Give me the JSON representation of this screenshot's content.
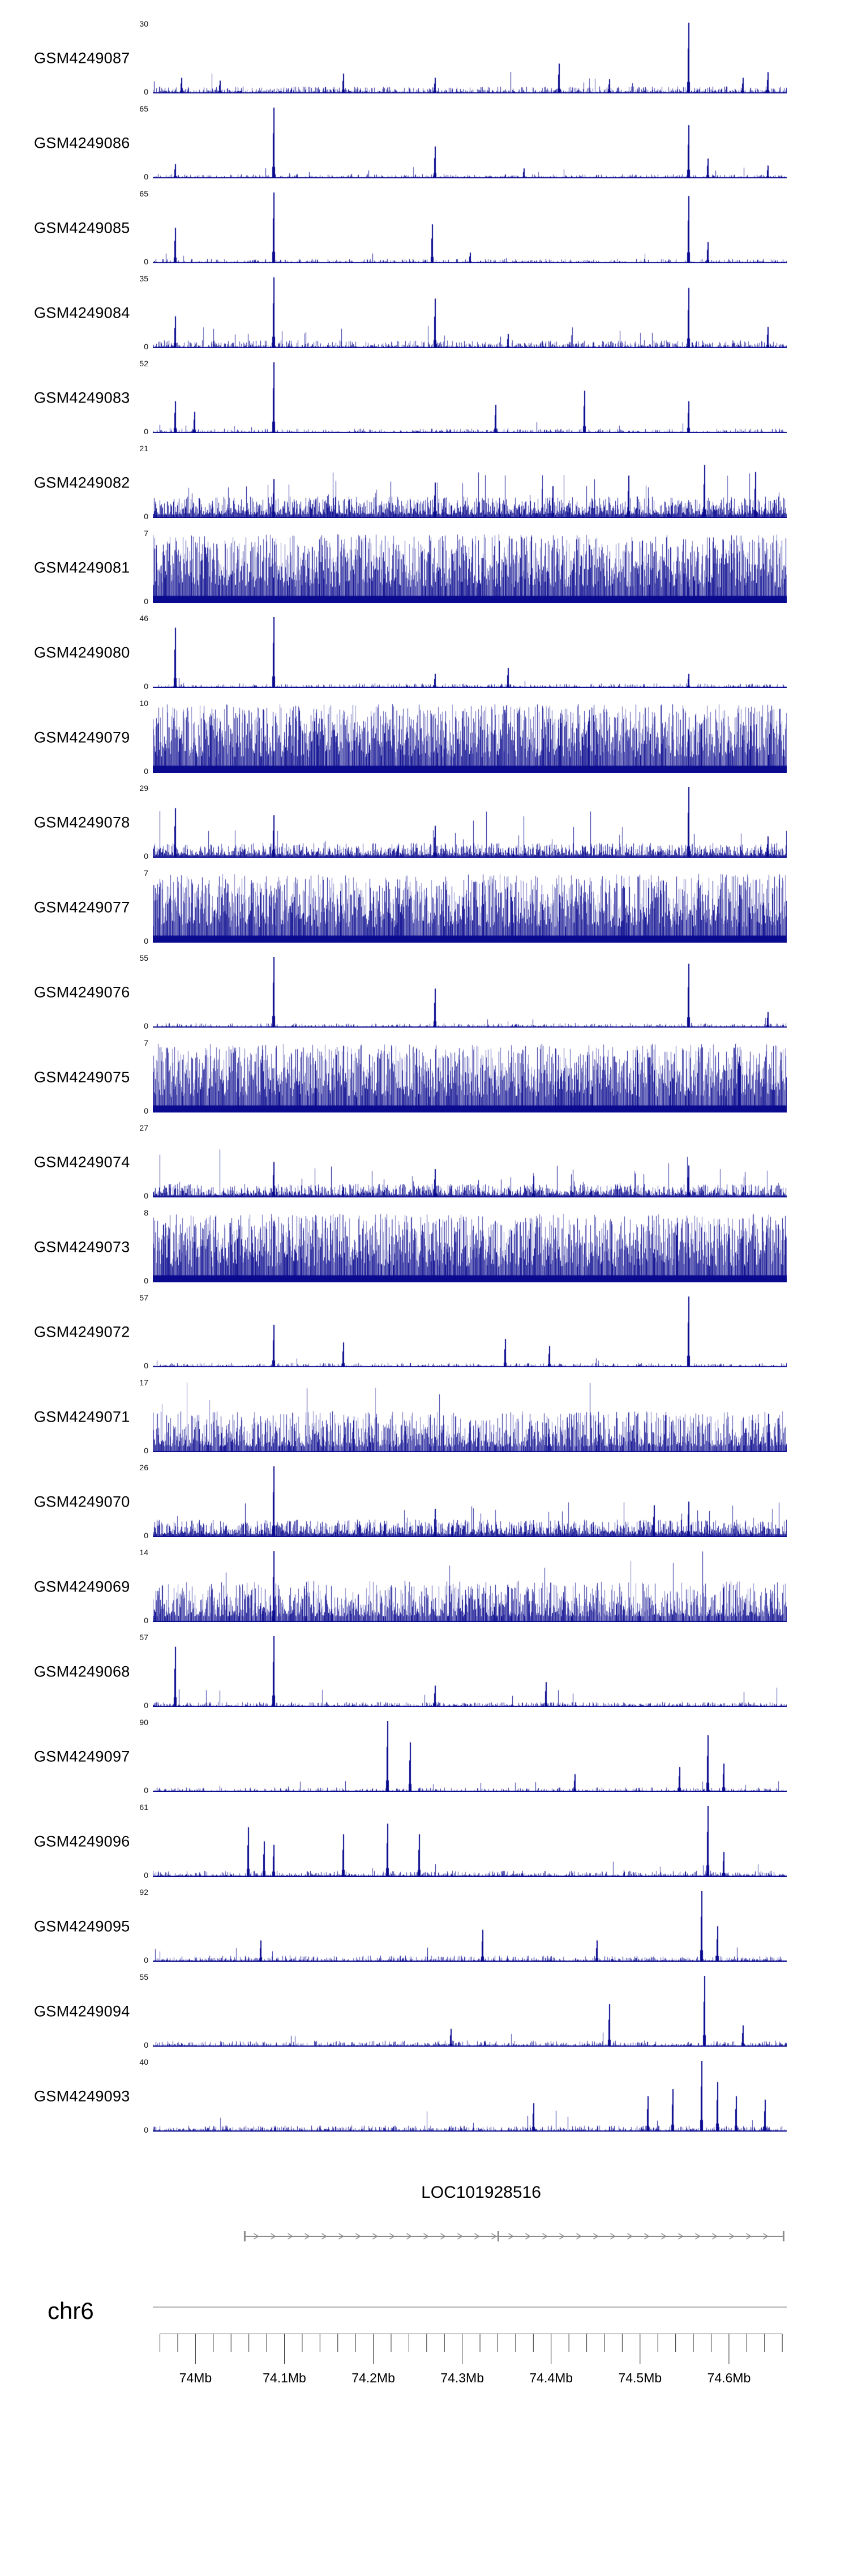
{
  "chart_data": {
    "type": "area",
    "variant": "genome-coverage-tracks",
    "title": "",
    "colors": {
      "signal": "#0a0a8f",
      "gene": "#8c8c8c",
      "axis_line": "#9a9a9a",
      "tick": "#333333",
      "text": "#000000"
    },
    "x_axis": {
      "chromosome": "chr6",
      "xlim_mb": [
        73.952,
        74.665
      ],
      "major_ticks_mb": [
        74.0,
        74.1,
        74.2,
        74.3,
        74.4,
        74.5,
        74.6
      ],
      "tick_labels": [
        "74Mb",
        "74.1Mb",
        "74.2Mb",
        "74.3Mb",
        "74.4Mb",
        "74.5Mb",
        "74.6Mb"
      ],
      "minor_tick_step_mb": 0.02
    },
    "gene_annotation": {
      "name": "LOC101928516",
      "strand": "+",
      "start_frac": 0.145,
      "end_frac": 0.995,
      "exon_marks": [
        0.145,
        0.545,
        0.995
      ]
    },
    "tracks": [
      {
        "label": "GSM4249087",
        "ymax": 30,
        "ymin": 0,
        "pattern": "low",
        "noise": 0.07,
        "spikes": [
          {
            "x": 0.045,
            "h": 0.22
          },
          {
            "x": 0.105,
            "h": 0.18
          },
          {
            "x": 0.3,
            "h": 0.28
          },
          {
            "x": 0.445,
            "h": 0.22
          },
          {
            "x": 0.64,
            "h": 0.42
          },
          {
            "x": 0.72,
            "h": 0.2
          },
          {
            "x": 0.845,
            "h": 1.0
          },
          {
            "x": 0.93,
            "h": 0.22
          },
          {
            "x": 0.97,
            "h": 0.3
          }
        ]
      },
      {
        "label": "GSM4249086",
        "ymax": 65,
        "ymin": 0,
        "pattern": "flat",
        "spikes": [
          {
            "x": 0.035,
            "h": 0.2
          },
          {
            "x": 0.19,
            "h": 1.0
          },
          {
            "x": 0.445,
            "h": 0.45
          },
          {
            "x": 0.585,
            "h": 0.14
          },
          {
            "x": 0.845,
            "h": 0.75
          },
          {
            "x": 0.875,
            "h": 0.28
          },
          {
            "x": 0.97,
            "h": 0.18
          }
        ]
      },
      {
        "label": "GSM4249085",
        "ymax": 65,
        "ymin": 0,
        "pattern": "flat",
        "spikes": [
          {
            "x": 0.035,
            "h": 0.5
          },
          {
            "x": 0.19,
            "h": 1.0
          },
          {
            "x": 0.44,
            "h": 0.55
          },
          {
            "x": 0.5,
            "h": 0.15
          },
          {
            "x": 0.845,
            "h": 0.95
          },
          {
            "x": 0.875,
            "h": 0.3
          }
        ]
      },
      {
        "label": "GSM4249084",
        "ymax": 35,
        "ymin": 0,
        "pattern": "low",
        "noise": 0.08,
        "spikes": [
          {
            "x": 0.035,
            "h": 0.45
          },
          {
            "x": 0.19,
            "h": 1.0
          },
          {
            "x": 0.445,
            "h": 0.7
          },
          {
            "x": 0.56,
            "h": 0.2
          },
          {
            "x": 0.845,
            "h": 0.85
          },
          {
            "x": 0.97,
            "h": 0.3
          }
        ]
      },
      {
        "label": "GSM4249083",
        "ymax": 52,
        "ymin": 0,
        "pattern": "flat",
        "spikes": [
          {
            "x": 0.035,
            "h": 0.45
          },
          {
            "x": 0.065,
            "h": 0.3
          },
          {
            "x": 0.19,
            "h": 1.0
          },
          {
            "x": 0.54,
            "h": 0.4
          },
          {
            "x": 0.68,
            "h": 0.6
          },
          {
            "x": 0.845,
            "h": 0.45
          }
        ]
      },
      {
        "label": "GSM4249082",
        "ymax": 21,
        "ymin": 0,
        "pattern": "medium",
        "noise": 0.16,
        "spikes": [
          {
            "x": 0.19,
            "h": 0.55
          },
          {
            "x": 0.445,
            "h": 0.5
          },
          {
            "x": 0.63,
            "h": 0.45
          },
          {
            "x": 0.75,
            "h": 0.6
          },
          {
            "x": 0.87,
            "h": 0.75
          },
          {
            "x": 0.95,
            "h": 0.65
          }
        ]
      },
      {
        "label": "GSM4249081",
        "ymax": 7,
        "ymin": 0,
        "pattern": "dense",
        "spikes": []
      },
      {
        "label": "GSM4249080",
        "ymax": 46,
        "ymin": 0,
        "pattern": "flat",
        "spikes": [
          {
            "x": 0.035,
            "h": 0.85
          },
          {
            "x": 0.19,
            "h": 1.0
          },
          {
            "x": 0.445,
            "h": 0.2
          },
          {
            "x": 0.56,
            "h": 0.28
          },
          {
            "x": 0.845,
            "h": 0.2
          }
        ]
      },
      {
        "label": "GSM4249079",
        "ymax": 10,
        "ymin": 0,
        "pattern": "dense",
        "spikes": []
      },
      {
        "label": "GSM4249078",
        "ymax": 29,
        "ymin": 0,
        "pattern": "medium",
        "noise": 0.11,
        "spikes": [
          {
            "x": 0.035,
            "h": 0.7
          },
          {
            "x": 0.19,
            "h": 0.6
          },
          {
            "x": 0.445,
            "h": 0.45
          },
          {
            "x": 0.845,
            "h": 1.0
          },
          {
            "x": 0.97,
            "h": 0.3
          }
        ]
      },
      {
        "label": "GSM4249077",
        "ymax": 7,
        "ymin": 0,
        "pattern": "dense",
        "spikes": []
      },
      {
        "label": "GSM4249076",
        "ymax": 55,
        "ymin": 0,
        "pattern": "flat",
        "spikes": [
          {
            "x": 0.19,
            "h": 1.0
          },
          {
            "x": 0.445,
            "h": 0.55
          },
          {
            "x": 0.845,
            "h": 0.9
          },
          {
            "x": 0.97,
            "h": 0.22
          }
        ]
      },
      {
        "label": "GSM4249075",
        "ymax": 7,
        "ymin": 0,
        "pattern": "dense",
        "spikes": []
      },
      {
        "label": "GSM4249074",
        "ymax": 27,
        "ymin": 0,
        "pattern": "medium",
        "noise": 0.1,
        "spikes": [
          {
            "x": 0.19,
            "h": 0.5
          },
          {
            "x": 0.445,
            "h": 0.4
          },
          {
            "x": 0.6,
            "h": 0.3
          },
          {
            "x": 0.845,
            "h": 0.45
          }
        ]
      },
      {
        "label": "GSM4249073",
        "ymax": 8,
        "ymin": 0,
        "pattern": "dense",
        "spikes": []
      },
      {
        "label": "GSM4249072",
        "ymax": 57,
        "ymin": 0,
        "pattern": "flat",
        "spikes": [
          {
            "x": 0.19,
            "h": 0.6
          },
          {
            "x": 0.3,
            "h": 0.35
          },
          {
            "x": 0.555,
            "h": 0.4
          },
          {
            "x": 0.625,
            "h": 0.3
          },
          {
            "x": 0.845,
            "h": 1.0
          }
        ]
      },
      {
        "label": "GSM4249071",
        "ymax": 17,
        "ymin": 0,
        "pattern": "dense2",
        "spikes": []
      },
      {
        "label": "GSM4249070",
        "ymax": 26,
        "ymin": 0,
        "pattern": "medium",
        "noise": 0.13,
        "spikes": [
          {
            "x": 0.19,
            "h": 1.0
          },
          {
            "x": 0.445,
            "h": 0.4
          },
          {
            "x": 0.79,
            "h": 0.45
          },
          {
            "x": 0.845,
            "h": 0.5
          }
        ]
      },
      {
        "label": "GSM4249069",
        "ymax": 14,
        "ymin": 0,
        "pattern": "dense2",
        "spikes": [
          {
            "x": 0.19,
            "h": 1.0
          }
        ]
      },
      {
        "label": "GSM4249068",
        "ymax": 57,
        "ymin": 0,
        "pattern": "low",
        "noise": 0.05,
        "spikes": [
          {
            "x": 0.035,
            "h": 0.85
          },
          {
            "x": 0.19,
            "h": 1.0
          },
          {
            "x": 0.445,
            "h": 0.3
          },
          {
            "x": 0.62,
            "h": 0.35
          }
        ]
      },
      {
        "label": "GSM4249097",
        "ymax": 90,
        "ymin": 0,
        "pattern": "flat",
        "spikes": [
          {
            "x": 0.37,
            "h": 1.0
          },
          {
            "x": 0.405,
            "h": 0.7
          },
          {
            "x": 0.665,
            "h": 0.25
          },
          {
            "x": 0.83,
            "h": 0.35
          },
          {
            "x": 0.875,
            "h": 0.8
          },
          {
            "x": 0.9,
            "h": 0.4
          }
        ]
      },
      {
        "label": "GSM4249096",
        "ymax": 61,
        "ymin": 0,
        "pattern": "flat2",
        "spikes": [
          {
            "x": 0.15,
            "h": 0.7
          },
          {
            "x": 0.175,
            "h": 0.5
          },
          {
            "x": 0.19,
            "h": 0.45
          },
          {
            "x": 0.3,
            "h": 0.6
          },
          {
            "x": 0.37,
            "h": 0.75
          },
          {
            "x": 0.42,
            "h": 0.6
          },
          {
            "x": 0.875,
            "h": 1.0
          },
          {
            "x": 0.9,
            "h": 0.35
          }
        ]
      },
      {
        "label": "GSM4249095",
        "ymax": 92,
        "ymin": 0,
        "pattern": "flat2",
        "spikes": [
          {
            "x": 0.17,
            "h": 0.3
          },
          {
            "x": 0.52,
            "h": 0.45
          },
          {
            "x": 0.7,
            "h": 0.3
          },
          {
            "x": 0.865,
            "h": 1.0
          },
          {
            "x": 0.89,
            "h": 0.5
          }
        ]
      },
      {
        "label": "GSM4249094",
        "ymax": 55,
        "ymin": 0,
        "pattern": "flat2",
        "spikes": [
          {
            "x": 0.47,
            "h": 0.25
          },
          {
            "x": 0.72,
            "h": 0.6
          },
          {
            "x": 0.87,
            "h": 1.0
          },
          {
            "x": 0.93,
            "h": 0.3
          }
        ]
      },
      {
        "label": "GSM4249093",
        "ymax": 40,
        "ymin": 0,
        "pattern": "low",
        "noise": 0.06,
        "spikes": [
          {
            "x": 0.6,
            "h": 0.4
          },
          {
            "x": 0.78,
            "h": 0.5
          },
          {
            "x": 0.82,
            "h": 0.6
          },
          {
            "x": 0.865,
            "h": 1.0
          },
          {
            "x": 0.89,
            "h": 0.7
          },
          {
            "x": 0.92,
            "h": 0.5
          },
          {
            "x": 0.965,
            "h": 0.45
          }
        ]
      }
    ]
  }
}
